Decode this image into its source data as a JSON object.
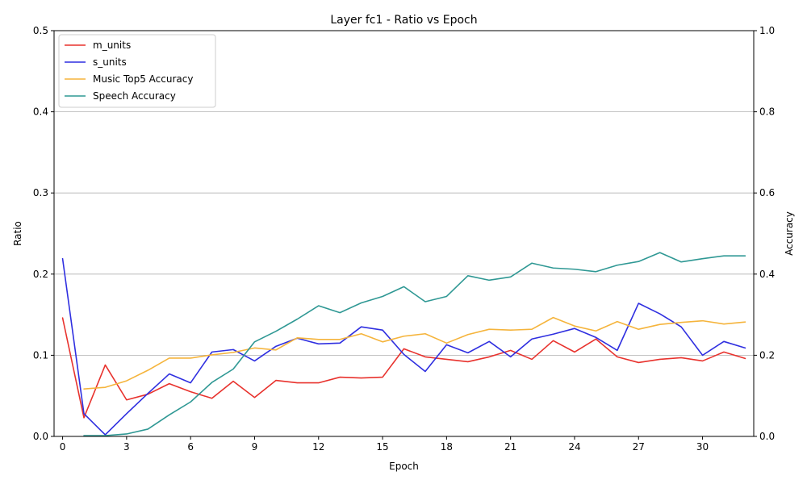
{
  "chart_data": {
    "type": "line",
    "title": "Layer fc1 - Ratio vs Epoch",
    "xlabel": "Epoch",
    "ylabel_left": "Ratio",
    "ylabel_right": "Accuracy",
    "xlim": [
      -0.4,
      32.4
    ],
    "ylim_left": [
      0,
      0.5
    ],
    "ylim_right": [
      0,
      1.0
    ],
    "xticks": [
      0,
      3,
      6,
      9,
      12,
      15,
      18,
      21,
      24,
      27,
      30
    ],
    "yticks_left": [
      "0.0",
      "0.1",
      "0.2",
      "0.3",
      "0.4",
      "0.5"
    ],
    "yticks_right": [
      "0.0",
      "0.2",
      "0.4",
      "0.6",
      "0.8",
      "1.0"
    ],
    "grid": "horizontal",
    "legend_position": "top-left",
    "series": [
      {
        "name": "m_units",
        "axis": "left",
        "color": "#e8322d",
        "x": [
          0,
          1,
          2,
          3,
          4,
          5,
          6,
          7,
          8,
          9,
          10,
          11,
          12,
          13,
          14,
          15,
          16,
          17,
          18,
          19,
          20,
          21,
          22,
          23,
          24,
          25,
          26,
          27,
          28,
          29,
          30,
          31,
          32
        ],
        "values": [
          0.146,
          0.023,
          0.088,
          0.045,
          0.052,
          0.065,
          0.055,
          0.047,
          0.068,
          0.048,
          0.069,
          0.066,
          0.066,
          0.073,
          0.072,
          0.073,
          0.108,
          0.098,
          0.095,
          0.092,
          0.098,
          0.106,
          0.095,
          0.118,
          0.104,
          0.12,
          0.098,
          0.091,
          0.095,
          0.097,
          0.093,
          0.104,
          0.096
        ]
      },
      {
        "name": "s_units",
        "axis": "left",
        "color": "#2f2fe0",
        "x": [
          0,
          1,
          2,
          3,
          4,
          5,
          6,
          7,
          8,
          9,
          10,
          11,
          12,
          13,
          14,
          15,
          16,
          17,
          18,
          19,
          20,
          21,
          22,
          23,
          24,
          25,
          26,
          27,
          28,
          29,
          30,
          31,
          32
        ],
        "values": [
          0.219,
          0.028,
          0.002,
          0.028,
          0.053,
          0.077,
          0.066,
          0.104,
          0.107,
          0.093,
          0.111,
          0.121,
          0.114,
          0.115,
          0.135,
          0.131,
          0.101,
          0.08,
          0.113,
          0.103,
          0.117,
          0.098,
          0.12,
          0.126,
          0.133,
          0.122,
          0.106,
          0.164,
          0.151,
          0.135,
          0.1,
          0.117,
          0.109
        ]
      },
      {
        "name": "Music Top5 Accuracy",
        "axis": "right",
        "color": "#f5b43c",
        "x": [
          1,
          2,
          3,
          4,
          5,
          6,
          7,
          8,
          9,
          10,
          11,
          12,
          13,
          14,
          15,
          16,
          17,
          18,
          19,
          20,
          21,
          22,
          23,
          24,
          25,
          26,
          27,
          28,
          29,
          30,
          31,
          32
        ],
        "values": [
          0.117,
          0.121,
          0.137,
          0.163,
          0.193,
          0.193,
          0.201,
          0.207,
          0.218,
          0.213,
          0.243,
          0.239,
          0.239,
          0.253,
          0.233,
          0.247,
          0.253,
          0.23,
          0.251,
          0.264,
          0.262,
          0.264,
          0.293,
          0.272,
          0.26,
          0.283,
          0.264,
          0.276,
          0.281,
          0.285,
          0.277,
          0.282
        ]
      },
      {
        "name": "Speech Accuracy",
        "axis": "right",
        "color": "#2f9894",
        "x": [
          1,
          2,
          3,
          4,
          5,
          6,
          7,
          8,
          9,
          10,
          11,
          12,
          13,
          14,
          15,
          16,
          17,
          18,
          19,
          20,
          21,
          22,
          23,
          24,
          25,
          26,
          27,
          28,
          29,
          30,
          31,
          32
        ],
        "values": [
          0.002,
          0.002,
          0.006,
          0.018,
          0.053,
          0.085,
          0.133,
          0.166,
          0.233,
          0.259,
          0.289,
          0.322,
          0.305,
          0.329,
          0.345,
          0.369,
          0.332,
          0.345,
          0.396,
          0.385,
          0.393,
          0.427,
          0.415,
          0.412,
          0.406,
          0.422,
          0.431,
          0.453,
          0.43,
          0.438,
          0.445,
          0.445
        ]
      }
    ]
  }
}
